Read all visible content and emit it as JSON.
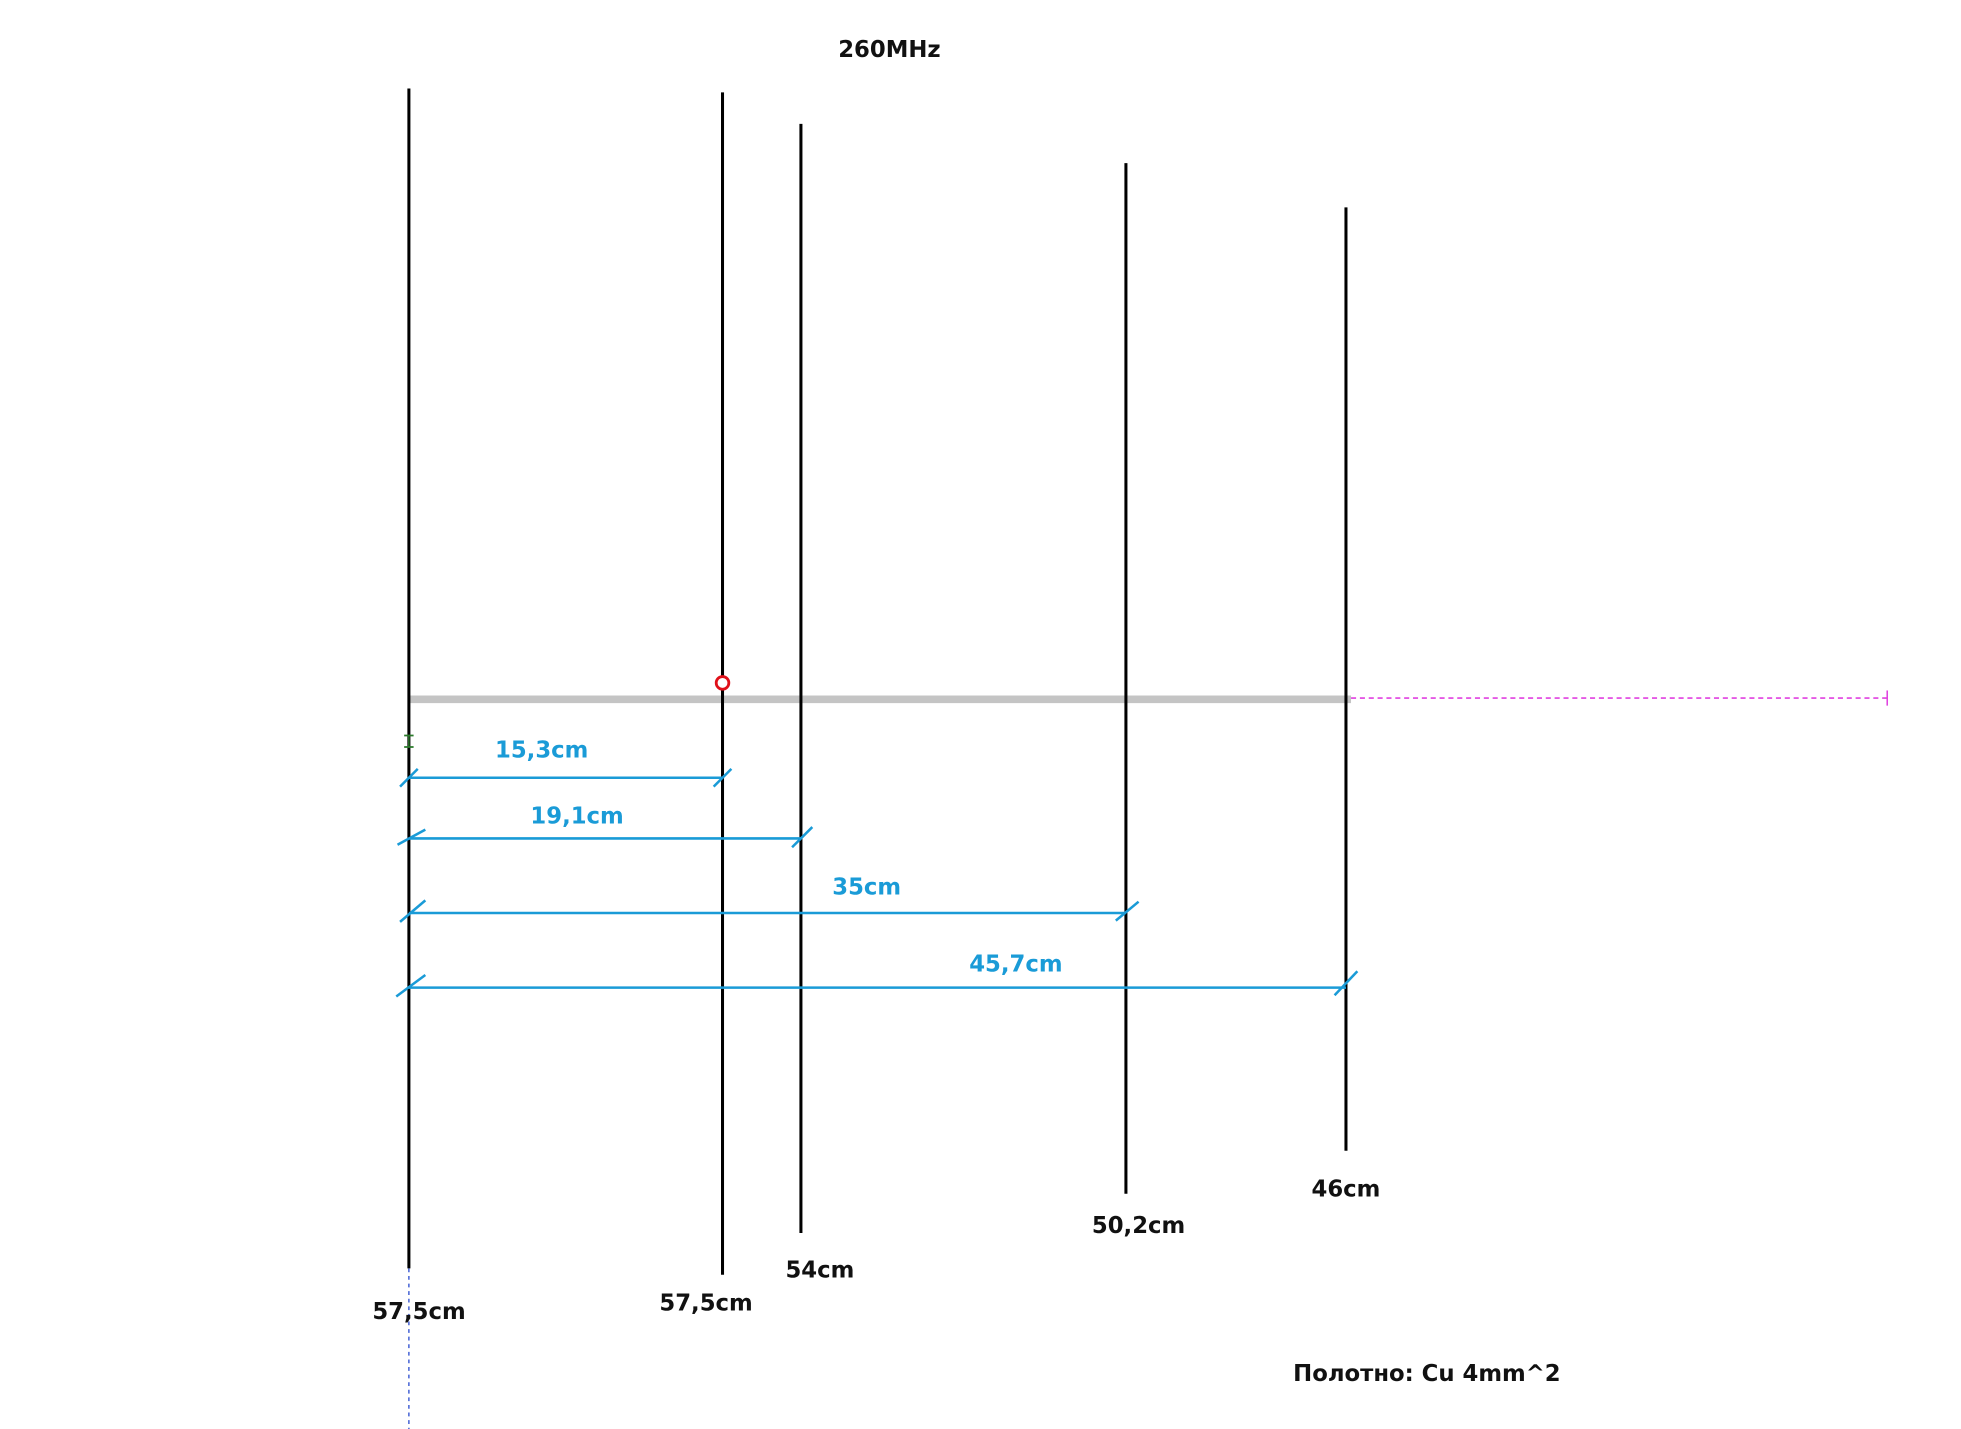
{
  "title": "260MHz",
  "elements": [
    {
      "length": "57,5cm"
    },
    {
      "length": "57,5cm"
    },
    {
      "length": "54cm"
    },
    {
      "length": "50,2cm"
    },
    {
      "length": "46cm"
    }
  ],
  "spacings": [
    "15,3cm",
    "19,1cm",
    "35cm",
    "45,7cm"
  ],
  "note": "Полотно: Cu 4mm^2"
}
